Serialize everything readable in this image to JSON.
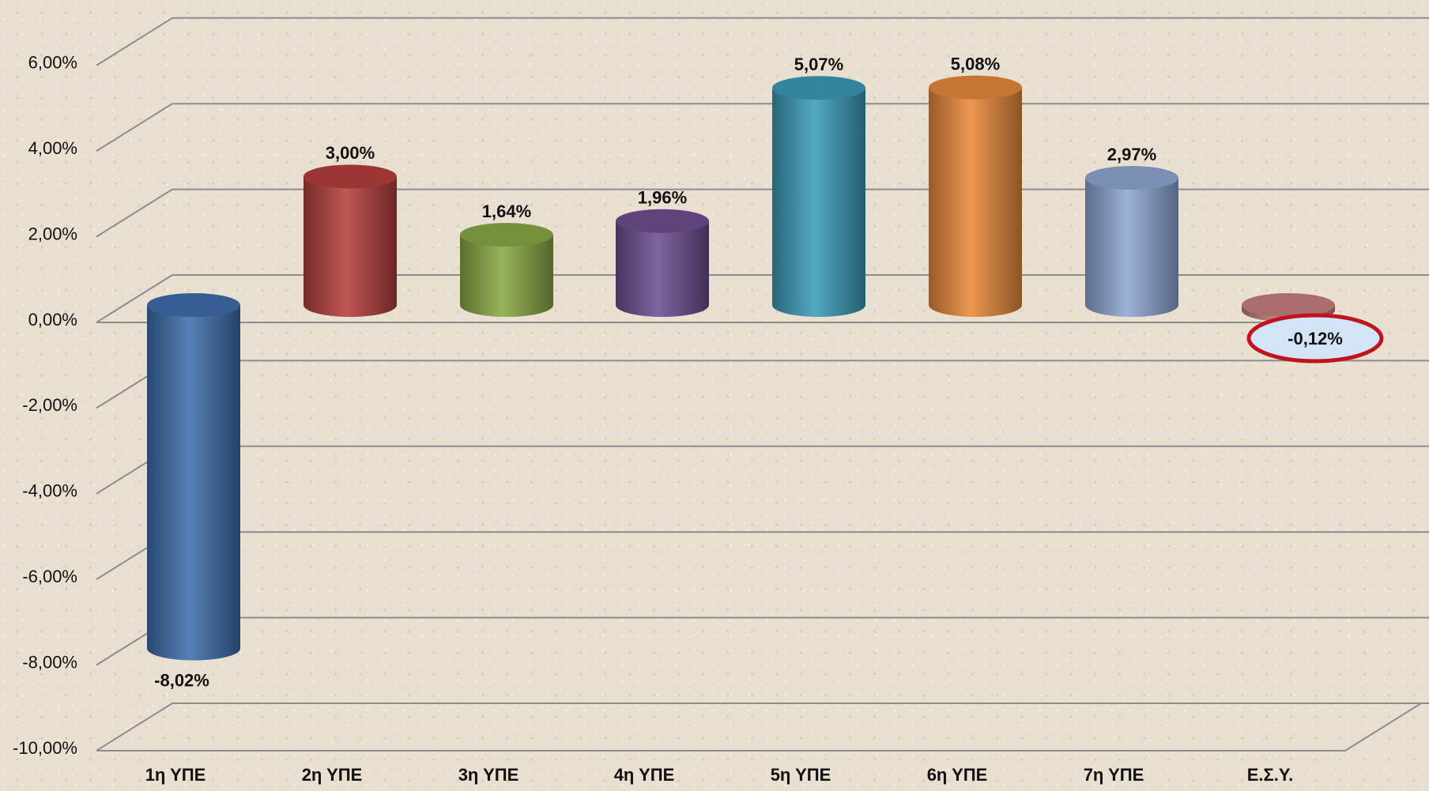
{
  "chart_data": {
    "type": "bar",
    "categories": [
      "1η ΥΠΕ",
      "2η ΥΠΕ",
      "3η ΥΠΕ",
      "4η ΥΠΕ",
      "5η ΥΠΕ",
      "6η ΥΠΕ",
      "7η ΥΠΕ",
      "Ε.Σ.Υ."
    ],
    "values": [
      -8.02,
      3.0,
      1.64,
      1.96,
      5.07,
      5.08,
      2.97,
      -0.12
    ],
    "data_labels": [
      "-8,02%",
      "3,00%",
      "1,64%",
      "1,96%",
      "5,07%",
      "5,08%",
      "2,97%",
      "-0,12%"
    ],
    "y_ticks": [
      6,
      4,
      2,
      0,
      -2,
      -4,
      -6,
      -8,
      -10
    ],
    "y_tick_labels": [
      "6,00%",
      "4,00%",
      "2,00%",
      "0,00%",
      "-2,00%",
      "-4,00%",
      "-6,00%",
      "-8,00%",
      "-10,00%"
    ],
    "ylim": [
      -10,
      6
    ],
    "title": "",
    "xlabel": "",
    "ylabel": "",
    "grid": true,
    "style": "3d-cylinder",
    "highlight_category": "Ε.Σ.Υ.",
    "highlight_color": "#c0141c",
    "bar_colors": [
      "#3f6fae",
      "#b6403e",
      "#8aaa45",
      "#6e4f93",
      "#3c9db9",
      "#ea8a3c",
      "#8fa8d4",
      "#c98080"
    ]
  }
}
